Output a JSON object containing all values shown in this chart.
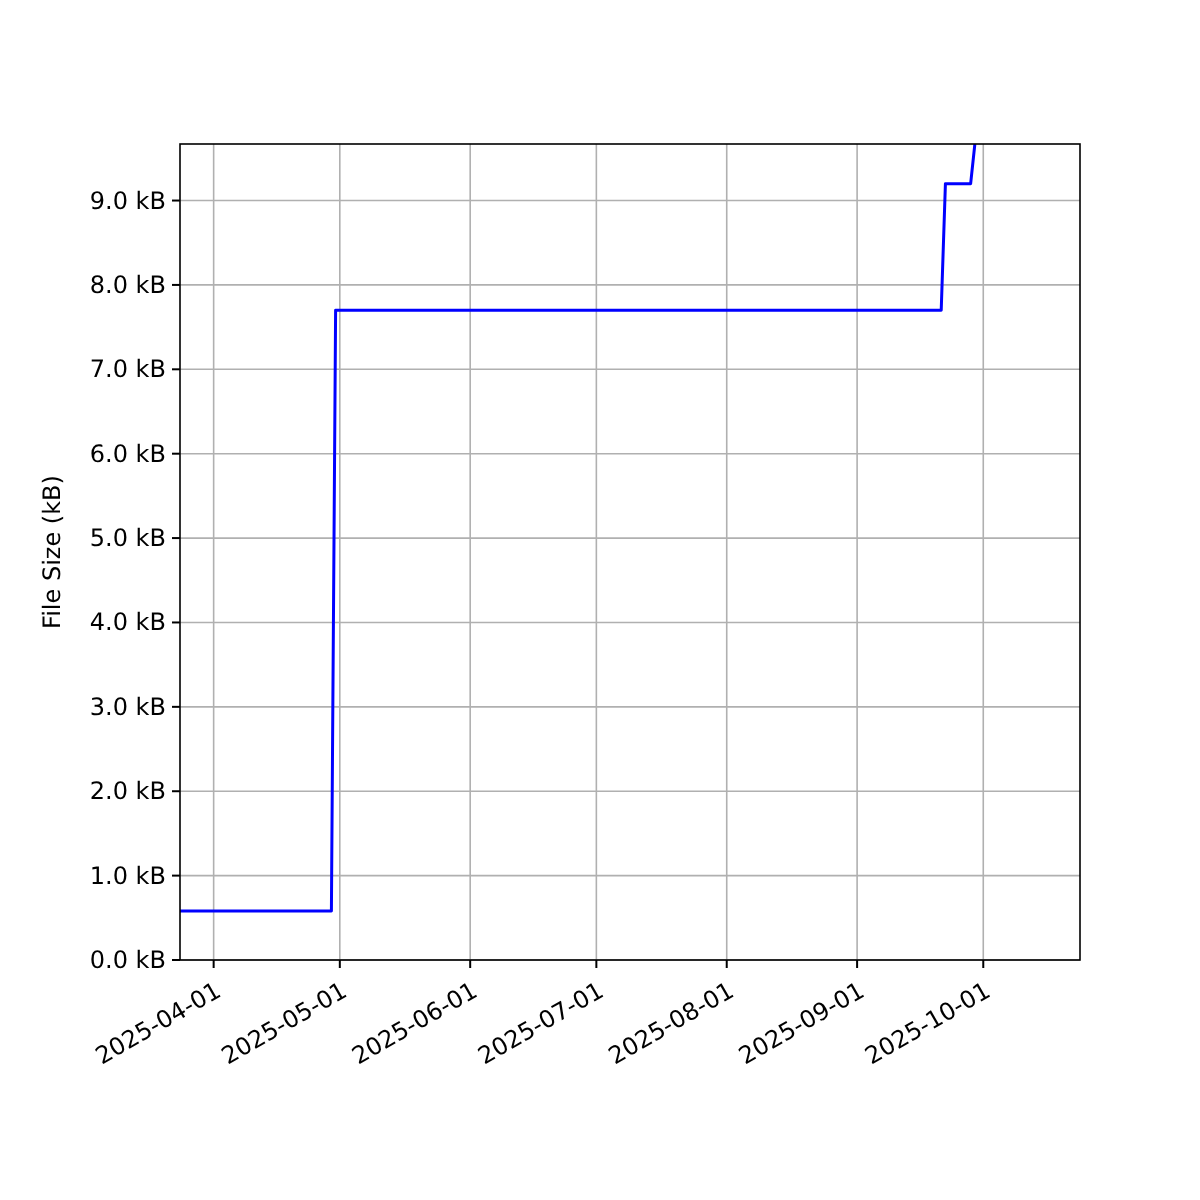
{
  "chart_data": {
    "type": "line",
    "ylabel": "File Size (kB)",
    "x": [
      "2025-03-24",
      "2025-04-29",
      "2025-04-30",
      "2025-09-21",
      "2025-09-22",
      "2025-09-28",
      "2025-09-29"
    ],
    "series": [
      {
        "color": "#0000ff",
        "values": [
          0.58,
          0.58,
          7.7,
          7.7,
          9.2,
          9.2,
          9.67
        ]
      }
    ],
    "xlim": [
      "2025-03-24",
      "2025-10-24"
    ],
    "xticks": [
      {
        "value": "2025-04-01",
        "label": "2025-04-01"
      },
      {
        "value": "2025-05-01",
        "label": "2025-05-01"
      },
      {
        "value": "2025-06-01",
        "label": "2025-06-01"
      },
      {
        "value": "2025-07-01",
        "label": "2025-07-01"
      },
      {
        "value": "2025-08-01",
        "label": "2025-08-01"
      },
      {
        "value": "2025-09-01",
        "label": "2025-09-01"
      },
      {
        "value": "2025-10-01",
        "label": "2025-10-01"
      }
    ],
    "ylim": [
      0,
      9.67
    ],
    "yticks": [
      {
        "value": 0,
        "label": "0.0 kB"
      },
      {
        "value": 1,
        "label": "1.0 kB"
      },
      {
        "value": 2,
        "label": "2.0 kB"
      },
      {
        "value": 3,
        "label": "3.0 kB"
      },
      {
        "value": 4,
        "label": "4.0 kB"
      },
      {
        "value": 5,
        "label": "5.0 kB"
      },
      {
        "value": 6,
        "label": "6.0 kB"
      },
      {
        "value": 7,
        "label": "7.0 kB"
      },
      {
        "value": 8,
        "label": "8.0 kB"
      },
      {
        "value": 9,
        "label": "9.0 kB"
      }
    ],
    "grid": true
  }
}
